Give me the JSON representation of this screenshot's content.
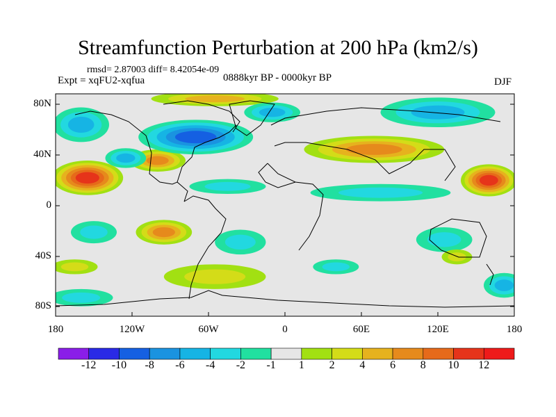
{
  "title": "Streamfunction Perturbation at 200 hPa (km2/s)",
  "stats": "rmsd= 2.87003 diff= 8.42054e-09",
  "experiment": "Expt = xqFU2-xqfua",
  "period": "0888kyr BP - 0000kyr BP",
  "season": "DJF",
  "y_ticks": [
    "80N",
    "40N",
    "0",
    "40S",
    "80S"
  ],
  "x_ticks": [
    "180",
    "120W",
    "60W",
    "0",
    "60E",
    "120E",
    "180"
  ],
  "colorbar": {
    "labels": [
      "-12",
      "-10",
      "-8",
      "-6",
      "-4",
      "-2",
      "-1",
      "1",
      "2",
      "4",
      "6",
      "8",
      "10",
      "12"
    ],
    "colors": [
      "#8a1ee8",
      "#2a2ae6",
      "#1560e2",
      "#1a93e0",
      "#16b4e4",
      "#22d8e0",
      "#21e0a0",
      "#e6e6e6",
      "#a2e012",
      "#d4dc18",
      "#e6b21e",
      "#e68a1c",
      "#e66a1a",
      "#e6341a",
      "#ee1a1a"
    ]
  },
  "map": {
    "lon_range": [
      -180,
      180
    ],
    "lat_range": [
      -90,
      90
    ],
    "blobs": [
      {
        "lon": -155,
        "lat": 22,
        "rlon": 28,
        "rlat": 14,
        "value": 11
      },
      {
        "lon": -100,
        "lat": 36,
        "rlon": 22,
        "rlat": 9,
        "value": 7
      },
      {
        "lon": -125,
        "lat": 38,
        "rlon": 16,
        "rlat": 8,
        "value": -5
      },
      {
        "lon": -70,
        "lat": 55,
        "rlon": 45,
        "rlat": 14,
        "value": -8
      },
      {
        "lon": -160,
        "lat": 65,
        "rlon": 22,
        "rlat": 14,
        "value": -4
      },
      {
        "lon": -55,
        "lat": 86,
        "rlon": 50,
        "rlat": 6,
        "value": 5
      },
      {
        "lon": -10,
        "lat": 75,
        "rlon": 22,
        "rlat": 8,
        "value": -4
      },
      {
        "lon": 70,
        "lat": 45,
        "rlon": 55,
        "rlat": 11,
        "value": 7
      },
      {
        "lon": 120,
        "lat": 75,
        "rlon": 45,
        "rlat": 12,
        "value": -5
      },
      {
        "lon": 160,
        "lat": 20,
        "rlon": 22,
        "rlat": 13,
        "value": 10
      },
      {
        "lon": 75,
        "lat": 10,
        "rlon": 55,
        "rlat": 7,
        "value": -3
      },
      {
        "lon": -45,
        "lat": 15,
        "rlon": 30,
        "rlat": 6,
        "value": -2
      },
      {
        "lon": -95,
        "lat": -22,
        "rlon": 22,
        "rlat": 10,
        "value": 7
      },
      {
        "lon": -150,
        "lat": -22,
        "rlon": 18,
        "rlat": 9,
        "value": -3
      },
      {
        "lon": -35,
        "lat": -30,
        "rlon": 20,
        "rlat": 10,
        "value": -3
      },
      {
        "lon": 125,
        "lat": -28,
        "rlon": 22,
        "rlat": 10,
        "value": -3
      },
      {
        "lon": 135,
        "lat": -42,
        "rlon": 12,
        "rlat": 6,
        "value": 2
      },
      {
        "lon": -55,
        "lat": -58,
        "rlon": 40,
        "rlat": 10,
        "value": 2
      },
      {
        "lon": -165,
        "lat": -50,
        "rlon": 18,
        "rlat": 6,
        "value": 2
      },
      {
        "lon": -160,
        "lat": -75,
        "rlon": 25,
        "rlat": 7,
        "value": -2
      },
      {
        "lon": 172,
        "lat": -65,
        "rlon": 16,
        "rlat": 10,
        "value": -4
      },
      {
        "lon": 40,
        "lat": -50,
        "rlon": 18,
        "rlat": 6,
        "value": -2
      }
    ]
  }
}
